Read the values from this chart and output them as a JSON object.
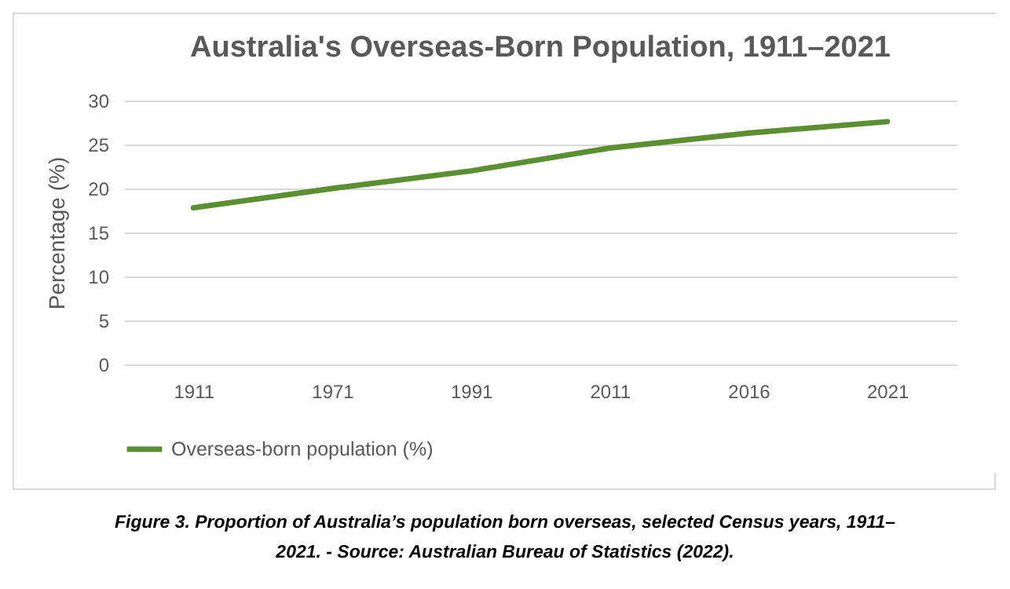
{
  "chart_data": {
    "type": "line",
    "title": "Australia's Overseas-Born Population, 1911–2021",
    "ylabel": "Percentage (%)",
    "categories": [
      "1911",
      "1971",
      "1991",
      "2011",
      "2016",
      "2021"
    ],
    "series": [
      {
        "name": "Overseas-born population (%)",
        "color": "#5b8f32",
        "values": [
          17.8,
          20.0,
          22.0,
          24.6,
          26.3,
          27.6
        ]
      }
    ],
    "ylim": [
      0,
      30
    ],
    "yticks": [
      0,
      5,
      10,
      15,
      20,
      25,
      30
    ],
    "grid": "y",
    "legend": "bottom",
    "marker": "none",
    "line_style": "solid",
    "annotations": [
      "Figure 3. Proportion of Australia’s population born overseas, selected Census years, 1911–2021. - Source: Australian Bureau of Statistics (2022)."
    ]
  }
}
